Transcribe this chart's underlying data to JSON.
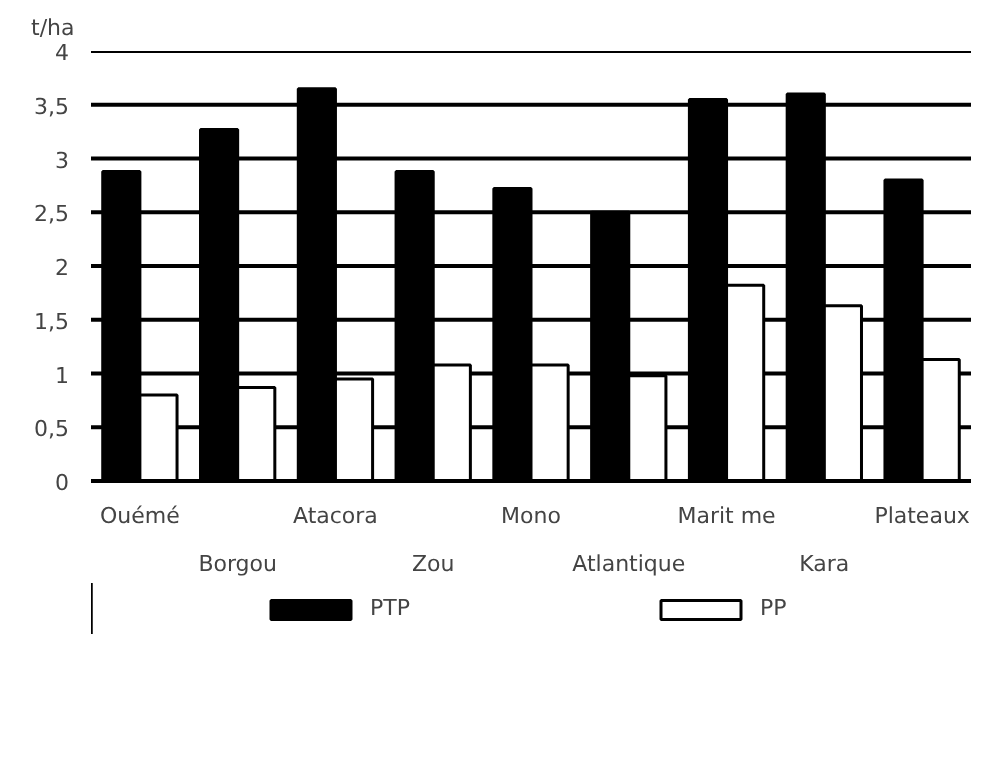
{
  "chart_data": {
    "type": "bar",
    "ylabel": "t/ha",
    "categories": [
      "Ouémé",
      "Borgou",
      "Atacora",
      "Zou",
      "Mono",
      "Atlantique",
      "Marit me",
      "Kara",
      "Plateaux"
    ],
    "series": [
      {
        "name": "PTP",
        "color": "#000000",
        "values": [
          2.88,
          3.27,
          3.65,
          2.88,
          2.72,
          2.5,
          3.55,
          3.6,
          2.8
        ]
      },
      {
        "name": "PP",
        "color": "#ffffff",
        "values": [
          0.8,
          0.87,
          0.95,
          1.08,
          1.08,
          0.98,
          1.82,
          1.63,
          1.13
        ]
      }
    ],
    "ylim": [
      0,
      4
    ],
    "yticks": [
      0,
      {
        "value": 0.5,
        "label": "0,5"
      },
      1,
      {
        "value": 1.5,
        "label": "1,5"
      },
      2,
      {
        "value": 2.5,
        "label": "2,5"
      },
      3,
      {
        "value": 3.5,
        "label": "3,5"
      },
      4
    ],
    "grid": "y",
    "legend": "bottom"
  }
}
